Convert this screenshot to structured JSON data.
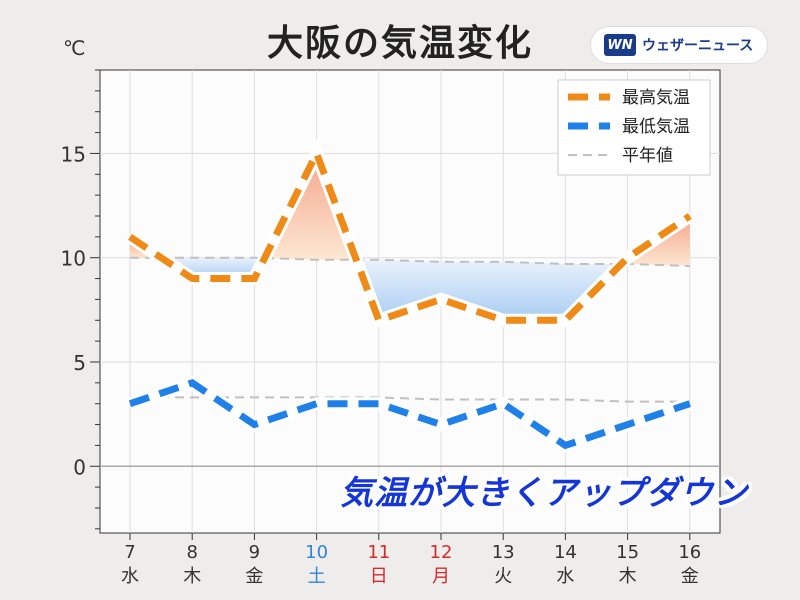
{
  "title": "大阪の気温変化",
  "unit": "℃",
  "brand": {
    "logo": "WN",
    "name": "ウェザーニュース"
  },
  "annotation": "気温が大きくアップダウン",
  "chart_data": {
    "type": "line",
    "title": "大阪の気温変化",
    "ylabel": "℃",
    "ylim": [
      -3.2,
      19
    ],
    "yticks": [
      0,
      5,
      10,
      15
    ],
    "categories": [
      "7",
      "8",
      "9",
      "10",
      "11",
      "12",
      "13",
      "14",
      "15",
      "16"
    ],
    "weekdays": [
      "水",
      "木",
      "金",
      "土",
      "日",
      "月",
      "火",
      "水",
      "木",
      "金"
    ],
    "day_colors": [
      "#333",
      "#333",
      "#333",
      "#2f86d6",
      "#d62b2b",
      "#d62b2b",
      "#333",
      "#333",
      "#333",
      "#333"
    ],
    "series": [
      {
        "name": "最高気温",
        "color": "#f08a17",
        "values": [
          11,
          9,
          9,
          15,
          7,
          8,
          7,
          7,
          10,
          12
        ]
      },
      {
        "name": "最低気温",
        "color": "#1f80e8",
        "values": [
          3,
          4,
          2,
          3,
          3,
          2,
          3,
          1,
          2,
          3
        ]
      },
      {
        "name": "平年値",
        "color": "#c0c0c0",
        "high_values": [
          10,
          10,
          10,
          9.9,
          9.9,
          9.8,
          9.8,
          9.7,
          9.7,
          9.6
        ],
        "low_values": [
          3.3,
          3.3,
          3.3,
          3.3,
          3.3,
          3.2,
          3.2,
          3.2,
          3.1,
          3.1
        ]
      }
    ],
    "grid": true,
    "legend": "top-right"
  }
}
